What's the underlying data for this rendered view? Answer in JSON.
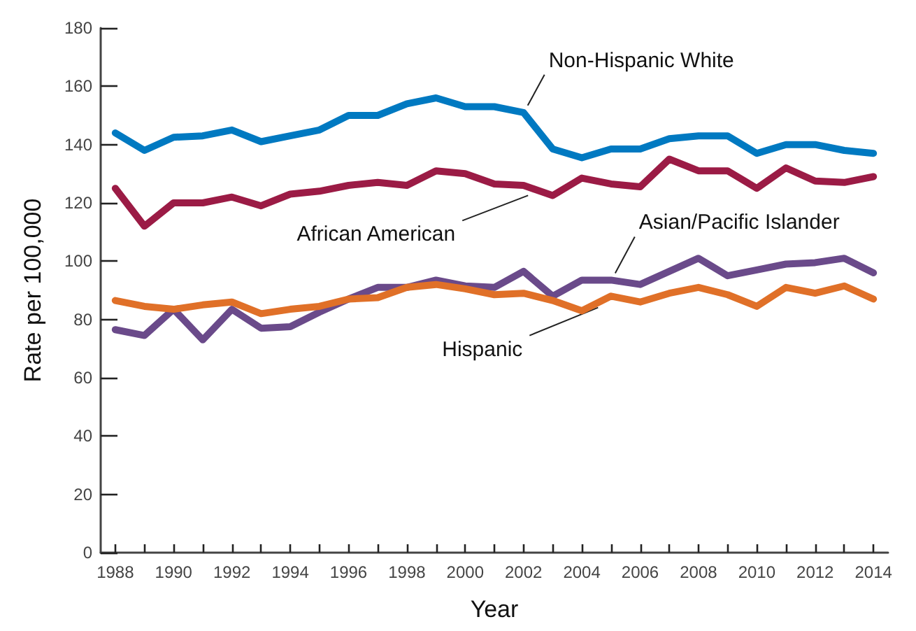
{
  "chart_data": {
    "type": "line",
    "xlabel": "Year",
    "ylabel": "Rate per 100,000",
    "x": [
      1988,
      1989,
      1990,
      1991,
      1992,
      1993,
      1994,
      1995,
      1996,
      1997,
      1998,
      1999,
      2000,
      2001,
      2002,
      2003,
      2004,
      2005,
      2006,
      2007,
      2008,
      2009,
      2010,
      2011,
      2012,
      2013,
      2014
    ],
    "series": [
      {
        "name": "Non-Hispanic White",
        "color": "#0079c1",
        "values": [
          144,
          138,
          142.5,
          143,
          145,
          141,
          143,
          145,
          150,
          150,
          154,
          156,
          153,
          153,
          151,
          138.5,
          135.5,
          138.5,
          138.5,
          142,
          143,
          143,
          137,
          140,
          140,
          138,
          137
        ]
      },
      {
        "name": "African American",
        "color": "#9b1b45",
        "values": [
          125,
          112,
          120,
          120,
          122,
          119,
          123,
          124,
          126,
          127,
          126,
          131,
          130,
          126.5,
          126,
          122.5,
          128.5,
          126.5,
          125.5,
          135,
          131,
          131,
          125,
          132,
          127.5,
          127,
          129
        ]
      },
      {
        "name": "Asian/Pacific Islander",
        "color": "#6a4a8a",
        "values": [
          76.5,
          74.5,
          83.5,
          73,
          83.5,
          77,
          77.5,
          82.5,
          87,
          91,
          91,
          93.5,
          91.5,
          91,
          96.5,
          88,
          93.5,
          93.5,
          92,
          96.5,
          101,
          95,
          97,
          99,
          99.5,
          101,
          96
        ]
      },
      {
        "name": "Hispanic",
        "color": "#e07028",
        "values": [
          86.5,
          84.5,
          83.5,
          85,
          86,
          82,
          83.5,
          84.5,
          87,
          87.5,
          91,
          92,
          90.5,
          88.5,
          89,
          86.5,
          83,
          88,
          86,
          89,
          91,
          88.5,
          84.5,
          91,
          89,
          91.5,
          87
        ]
      }
    ],
    "xlim": [
      1987.5,
      2014.5
    ],
    "xticks": [
      1988,
      {
        "value": 1989,
        "label": null
      },
      1990,
      {
        "value": 1991,
        "label": null
      },
      1992,
      {
        "value": 1993,
        "label": null
      },
      1994,
      {
        "value": 1995,
        "label": null
      },
      1996,
      {
        "value": 1997,
        "label": null
      },
      1998,
      {
        "value": 1999,
        "label": null
      },
      2000,
      {
        "value": 2001,
        "label": null
      },
      2002,
      {
        "value": 2003,
        "label": null
      },
      2004,
      {
        "value": 2005,
        "label": null
      },
      2006,
      {
        "value": 2007,
        "label": null
      },
      2008,
      {
        "value": 2009,
        "label": null
      },
      2010,
      {
        "value": 2011,
        "label": null
      },
      2012,
      {
        "value": 2013,
        "label": null
      },
      2014
    ],
    "ylim": [
      0,
      180
    ],
    "yticks": [
      0,
      20,
      40,
      60,
      80,
      100,
      120,
      140,
      160,
      180
    ],
    "grid": false,
    "legend": false,
    "marker": "none",
    "line_style": "solid"
  }
}
